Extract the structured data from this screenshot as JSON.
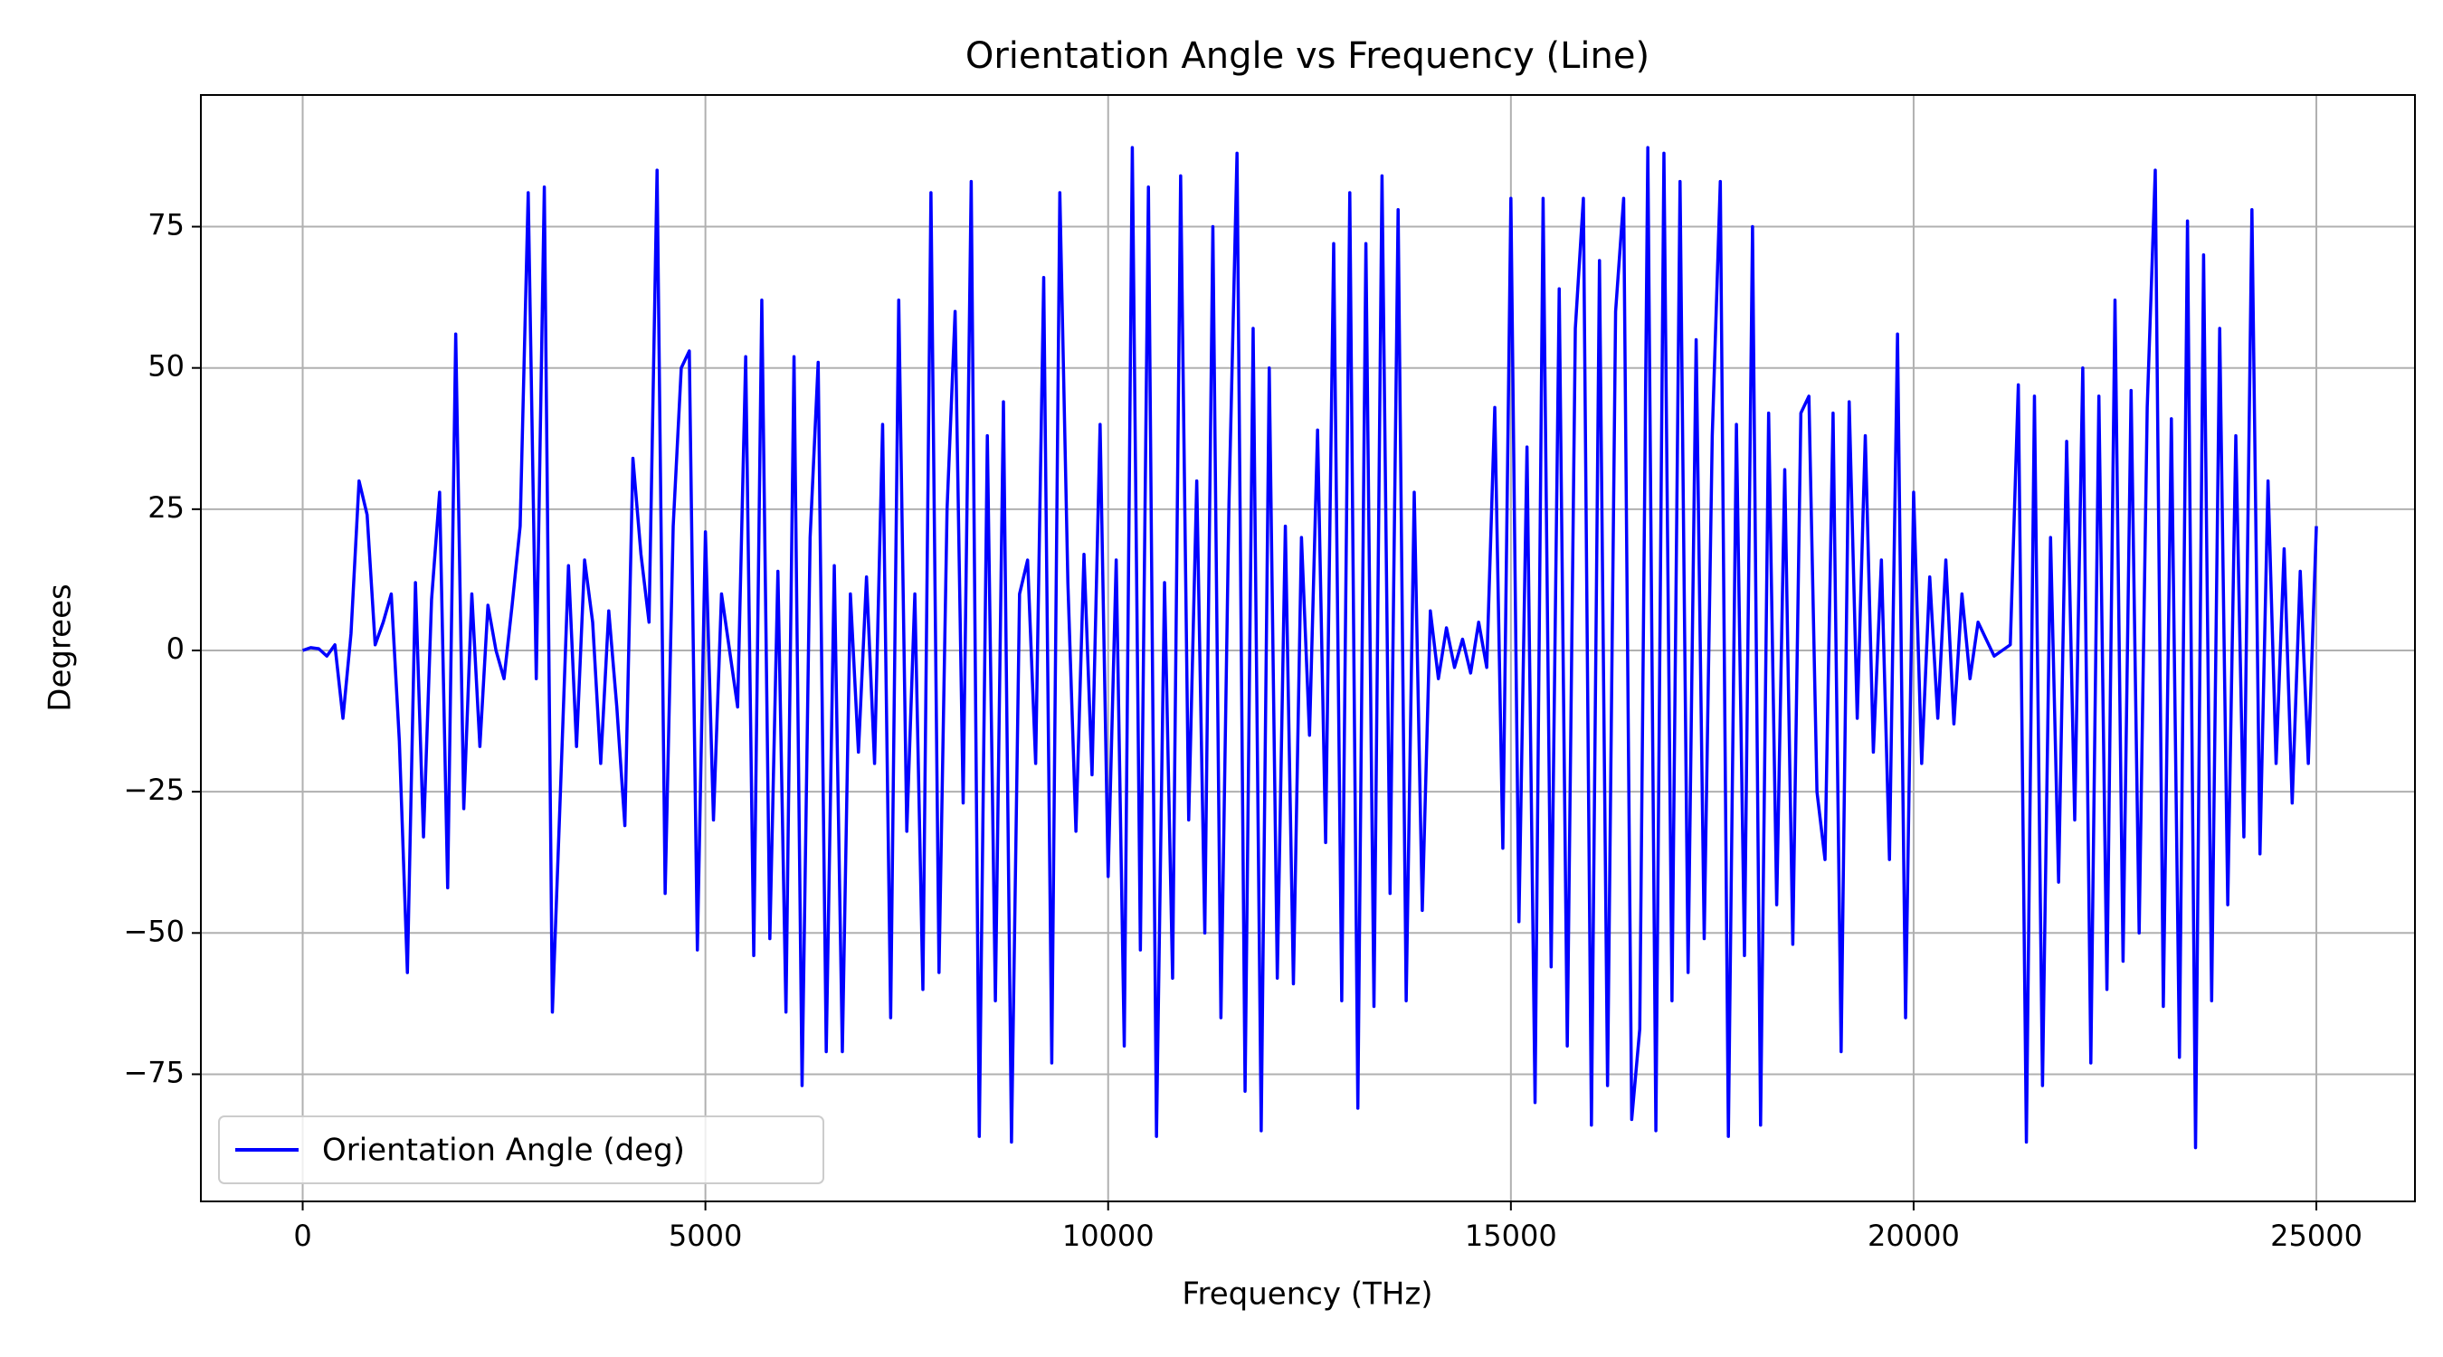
{
  "chart_data": {
    "type": "line",
    "title": "Orientation Angle vs Frequency (Line)",
    "x_label": "Frequency (THz)",
    "y_label": "Degrees",
    "x": [
      0,
      100,
      200,
      300,
      400,
      500,
      600,
      700,
      800,
      900,
      1000,
      1100,
      1200,
      1300,
      1400,
      1500,
      1600,
      1700,
      1800,
      1900,
      2000,
      2100,
      2200,
      2300,
      2400,
      2500,
      2600,
      2700,
      2800,
      2900,
      3000,
      3100,
      3200,
      3300,
      3400,
      3500,
      3600,
      3700,
      3800,
      3900,
      4000,
      4100,
      4200,
      4300,
      4400,
      4500,
      4600,
      4700,
      4800,
      4900,
      5000,
      5100,
      5200,
      5300,
      5400,
      5500,
      5600,
      5700,
      5800,
      5900,
      6000,
      6100,
      6200,
      6300,
      6400,
      6500,
      6600,
      6700,
      6800,
      6900,
      7000,
      7100,
      7200,
      7300,
      7400,
      7500,
      7600,
      7700,
      7800,
      7900,
      8000,
      8100,
      8200,
      8300,
      8400,
      8500,
      8600,
      8700,
      8800,
      8900,
      9000,
      9100,
      9200,
      9300,
      9400,
      9500,
      9600,
      9700,
      9800,
      9900,
      10000,
      10100,
      10200,
      10300,
      10400,
      10500,
      10600,
      10700,
      10800,
      10900,
      11000,
      11100,
      11200,
      11300,
      11400,
      11500,
      11600,
      11700,
      11800,
      11900,
      12000,
      12100,
      12200,
      12300,
      12400,
      12500,
      12600,
      12700,
      12800,
      12900,
      13000,
      13100,
      13200,
      13300,
      13400,
      13500,
      13600,
      13700,
      13800,
      13900,
      14000,
      14100,
      14200,
      14300,
      14400,
      14500,
      14600,
      14700,
      14800,
      14900,
      15000,
      15100,
      15200,
      15300,
      15400,
      15500,
      15600,
      15700,
      15800,
      15900,
      16000,
      16100,
      16200,
      16300,
      16400,
      16500,
      16600,
      16700,
      16800,
      16900,
      17000,
      17100,
      17200,
      17300,
      17400,
      17500,
      17600,
      17700,
      17800,
      17900,
      18000,
      18100,
      18200,
      18300,
      18400,
      18500,
      18600,
      18700,
      18800,
      18900,
      19000,
      19100,
      19200,
      19300,
      19400,
      19500,
      19600,
      19700,
      19800,
      19900,
      20000,
      20100,
      20200,
      20300,
      20400,
      20500,
      20600,
      20700,
      20800,
      20900,
      21000,
      21100,
      21200,
      21300,
      21400,
      21500,
      21600,
      21700,
      21800,
      21900,
      22000,
      22100,
      22200,
      22300,
      22400,
      22500,
      22600,
      22700,
      22800,
      22900,
      23000,
      23100,
      23200,
      23300,
      23400,
      23500,
      23600,
      23700,
      23800,
      23900,
      24000,
      24100,
      24200,
      24300,
      24400,
      24500,
      24600,
      24700,
      24800,
      24900,
      25000
    ],
    "series": [
      {
        "name": "Orientation Angle (deg)",
        "color": "#0000ff",
        "values": [
          0,
          0.5,
          0.3,
          -1,
          1,
          -12,
          3,
          30,
          24,
          1,
          5,
          10,
          -16,
          -57,
          12,
          -33,
          9,
          28,
          -42,
          56,
          -28,
          10,
          -17,
          8,
          0,
          -5,
          8,
          22,
          81,
          -5,
          82,
          -64,
          -25,
          15,
          -17,
          16,
          5,
          -20,
          7,
          -10,
          -31,
          34,
          17,
          5,
          85,
          -43,
          22,
          50,
          53,
          -53,
          21,
          -30,
          10,
          0,
          -10,
          52,
          -54,
          62,
          -51,
          14,
          -64,
          52,
          -77,
          20,
          51,
          -71,
          15,
          -71,
          10,
          -18,
          13,
          -20,
          40,
          -65,
          62,
          -32,
          10,
          -60,
          81,
          -57,
          25,
          60,
          -27,
          83,
          -86,
          38,
          -62,
          44,
          -87,
          10,
          16,
          -20,
          66,
          -73,
          81,
          12,
          -32,
          17,
          -22,
          40,
          -40,
          16,
          -70,
          89,
          -53,
          82,
          -86,
          12,
          -58,
          84,
          -30,
          30,
          -50,
          75,
          -65,
          26,
          88,
          -78,
          57,
          -85,
          50,
          -58,
          22,
          -59,
          20,
          -15,
          39,
          -34,
          72,
          -62,
          81,
          -81,
          72,
          -63,
          84,
          -43,
          78,
          -62,
          28,
          -46,
          7,
          -5,
          4,
          -3,
          2,
          -4,
          5,
          -3,
          43,
          -35,
          80,
          -48,
          36,
          -80,
          80,
          -56,
          64,
          -70,
          57,
          80,
          -84,
          69,
          -77,
          60,
          80,
          -83,
          -67,
          89,
          -85,
          88,
          -62,
          83,
          -57,
          55,
          -51,
          38,
          83,
          -86,
          40,
          -54,
          75,
          -84,
          42,
          -45,
          32,
          -52,
          42,
          45,
          -25,
          -37,
          42,
          -71,
          44,
          -12,
          38,
          -18,
          16,
          -37,
          56,
          -65,
          28,
          -20,
          13,
          -12,
          16,
          -13,
          10,
          -5,
          5,
          2,
          -1,
          0,
          1,
          47,
          -87,
          45,
          -77,
          20,
          -41,
          37,
          -30,
          50,
          -73,
          45,
          -60,
          62,
          -55,
          46,
          -50,
          43,
          85,
          -63,
          41,
          -72,
          76,
          -88,
          70,
          -62,
          57,
          -45,
          38,
          -33,
          78,
          -36,
          30,
          -20,
          18,
          -27,
          14,
          -20,
          22
        ]
      }
    ],
    "xlim": [
      -1264,
      26224
    ],
    "ylim": [
      -97.5,
      98.3
    ],
    "xticks": [
      0,
      5000,
      10000,
      15000,
      20000,
      25000
    ],
    "yticks": [
      {
        "value": -75,
        "label": "−75"
      },
      {
        "value": -50,
        "label": "−50"
      },
      {
        "value": -25,
        "label": "−25"
      },
      0,
      25,
      50,
      75
    ],
    "grid": true,
    "legend": "lower left"
  }
}
